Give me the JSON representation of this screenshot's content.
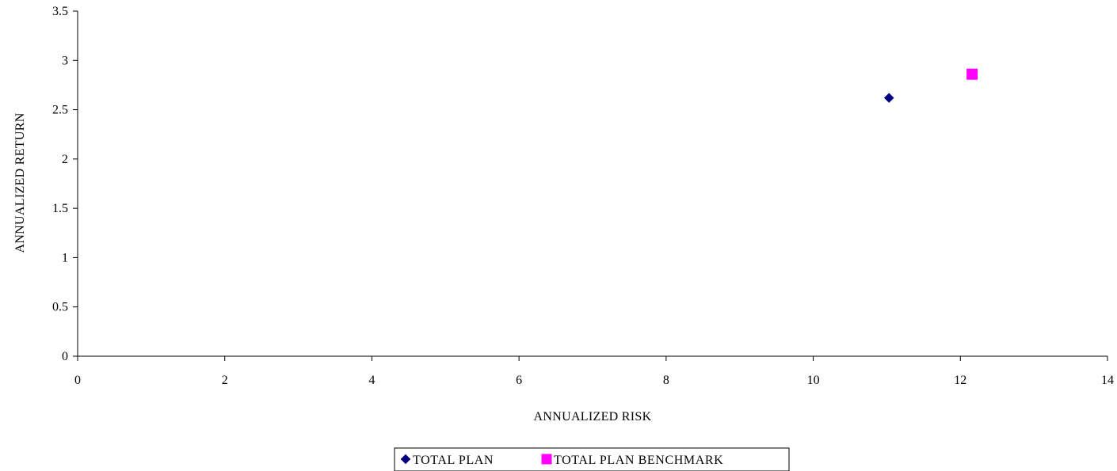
{
  "chart_data": {
    "type": "scatter",
    "title": "",
    "xlabel": "ANNUALIZED RISK",
    "ylabel": "ANNUALIZED RETURN",
    "xlim": [
      0,
      14
    ],
    "ylim": [
      0,
      3.5
    ],
    "x_ticks": [
      "0",
      "2",
      "4",
      "6",
      "8",
      "10",
      "12",
      "14"
    ],
    "y_ticks": [
      "0",
      "0.5",
      "1",
      "1.5",
      "2",
      "2.5",
      "3",
      "3.5"
    ],
    "grid": false,
    "legend_position": "bottom",
    "series": [
      {
        "name": "TOTAL PLAN",
        "marker": "diamond",
        "color": "#000080",
        "points": [
          {
            "x": 11.03,
            "y": 2.62
          }
        ]
      },
      {
        "name": "TOTAL PLAN BENCHMARK",
        "marker": "square",
        "color": "#ff00ff",
        "points": [
          {
            "x": 12.16,
            "y": 2.86
          }
        ]
      }
    ]
  }
}
